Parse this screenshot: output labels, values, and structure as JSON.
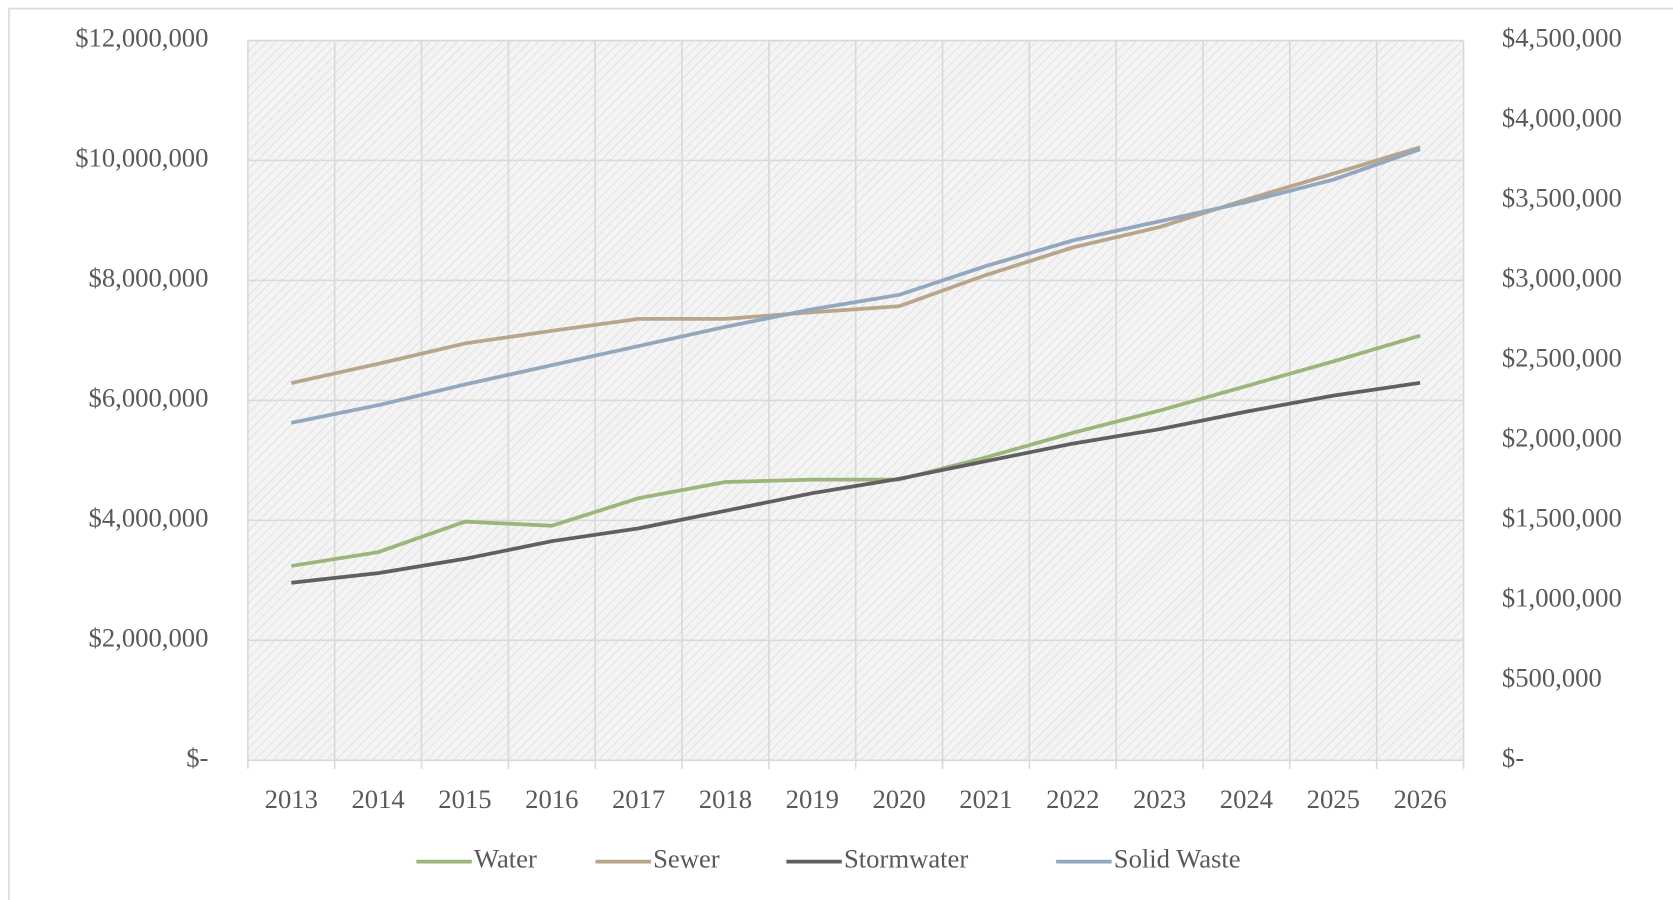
{
  "chart_data": {
    "type": "line",
    "categories": [
      "2013",
      "2014",
      "2015",
      "2016",
      "2017",
      "2018",
      "2019",
      "2020",
      "2021",
      "2022",
      "2023",
      "2024",
      "2025",
      "2026"
    ],
    "series": [
      {
        "name": "Water",
        "color": "#9bb57a",
        "axis": "y",
        "values": [
          3240000,
          3470000,
          3980000,
          3910000,
          4370000,
          4640000,
          4680000,
          4680000,
          5050000,
          5460000,
          5830000,
          6240000,
          6650000,
          7080000
        ]
      },
      {
        "name": "Sewer",
        "color": "#b9a58c",
        "axis": "y",
        "values": [
          6290000,
          6610000,
          6950000,
          7160000,
          7360000,
          7360000,
          7470000,
          7570000,
          8090000,
          8550000,
          8890000,
          9350000,
          9780000,
          10220000
        ]
      },
      {
        "name": "Stormwater",
        "color": "#606060",
        "axis": "y2",
        "values": [
          1110000,
          1170000,
          1260000,
          1370000,
          1450000,
          1560000,
          1670000,
          1760000,
          1870000,
          1980000,
          2070000,
          2180000,
          2280000,
          2360000
        ]
      },
      {
        "name": "Solid Waste",
        "color": "#91a8be",
        "axis": "y2",
        "values": [
          2110000,
          2220000,
          2350000,
          2470000,
          2590000,
          2710000,
          2820000,
          2910000,
          3090000,
          3250000,
          3370000,
          3490000,
          3630000,
          3820000
        ]
      }
    ],
    "ylim": [
      0,
      12000000
    ],
    "yticks": [
      {
        "value": 0,
        "label": "$-"
      },
      {
        "value": 2000000,
        "label": "$2,000,000"
      },
      {
        "value": 4000000,
        "label": "$4,000,000"
      },
      {
        "value": 6000000,
        "label": "$6,000,000"
      },
      {
        "value": 8000000,
        "label": "$8,000,000"
      },
      {
        "value": 10000000,
        "label": "$10,000,000"
      },
      {
        "value": 12000000,
        "label": "$12,000,000"
      }
    ],
    "y2lim": [
      0,
      4500000
    ],
    "y2ticks": [
      {
        "value": 0,
        "label": "$-"
      },
      {
        "value": 500000,
        "label": "$500,000"
      },
      {
        "value": 1000000,
        "label": "$1,000,000"
      },
      {
        "value": 1500000,
        "label": "$1,500,000"
      },
      {
        "value": 2000000,
        "label": "$2,000,000"
      },
      {
        "value": 2500000,
        "label": "$2,500,000"
      },
      {
        "value": 3000000,
        "label": "$3,000,000"
      },
      {
        "value": 3500000,
        "label": "$3,500,000"
      },
      {
        "value": 4000000,
        "label": "$4,000,000"
      },
      {
        "value": 4500000,
        "label": "$4,500,000"
      }
    ],
    "grid": true,
    "legend": "bottom"
  }
}
